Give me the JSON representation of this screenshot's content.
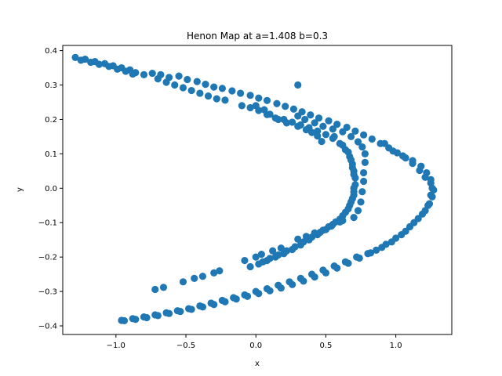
{
  "chart_data": {
    "type": "scatter",
    "title": "Henon Map at a=1.408 b=0.3",
    "xlabel": "x",
    "ylabel": "y",
    "xlim": [
      -1.38,
      1.4
    ],
    "ylim": [
      -0.425,
      0.415
    ],
    "xticks": [
      -1.0,
      -0.5,
      0.0,
      0.5,
      1.0
    ],
    "xtick_labels": [
      "−1.0",
      "−0.5",
      "0.0",
      "0.5",
      "1.0"
    ],
    "yticks": [
      -0.4,
      -0.3,
      -0.2,
      -0.1,
      0.0,
      0.1,
      0.2,
      0.3,
      0.4
    ],
    "ytick_labels": [
      "−0.4",
      "−0.3",
      "−0.2",
      "−0.1",
      "0.0",
      "0.1",
      "0.2",
      "0.3",
      "0.4"
    ],
    "grid": false,
    "marker_color": "#1f77b4",
    "series": [
      {
        "points": [
          [
            0.3,
            0.3
          ],
          [
            -1.29,
            0.38
          ],
          [
            -1.22,
            0.375
          ],
          [
            -1.15,
            0.368
          ],
          [
            -1.08,
            0.362
          ],
          [
            -1.02,
            0.356
          ],
          [
            -0.96,
            0.35
          ],
          [
            -0.9,
            0.344
          ],
          [
            -0.86,
            0.336
          ],
          [
            -0.8,
            0.33
          ],
          [
            -0.74,
            0.334
          ],
          [
            -0.68,
            0.33
          ],
          [
            -0.62,
            0.322
          ],
          [
            -0.55,
            0.326
          ],
          [
            -0.49,
            0.316
          ],
          [
            -0.42,
            0.31
          ],
          [
            -0.36,
            0.302
          ],
          [
            -0.3,
            0.294
          ],
          [
            -0.24,
            0.29
          ],
          [
            -0.17,
            0.283
          ],
          [
            -0.11,
            0.276
          ],
          [
            -0.04,
            0.27
          ],
          [
            0.02,
            0.262
          ],
          [
            0.08,
            0.255
          ],
          [
            0.15,
            0.246
          ],
          [
            0.21,
            0.238
          ],
          [
            0.27,
            0.23
          ],
          [
            0.33,
            0.222
          ],
          [
            0.39,
            0.213
          ],
          [
            0.45,
            0.204
          ],
          [
            0.52,
            0.196
          ],
          [
            0.58,
            0.186
          ],
          [
            0.65,
            0.177
          ],
          [
            0.71,
            0.166
          ],
          [
            0.77,
            0.155
          ],
          [
            0.83,
            0.143
          ],
          [
            0.89,
            0.13
          ],
          [
            0.95,
            0.117
          ],
          [
            1.01,
            0.103
          ],
          [
            1.07,
            0.088
          ],
          [
            1.12,
            0.072
          ],
          [
            1.17,
            0.052
          ],
          [
            1.21,
            0.032
          ],
          [
            1.25,
            0.015
          ],
          [
            1.27,
            -0.005
          ],
          [
            1.26,
            -0.025
          ],
          [
            1.24,
            -0.045
          ],
          [
            1.21,
            -0.065
          ],
          [
            1.16,
            -0.088
          ],
          [
            1.1,
            -0.112
          ],
          [
            1.04,
            -0.135
          ],
          [
            0.97,
            -0.156
          ],
          [
            0.9,
            -0.172
          ],
          [
            0.82,
            -0.188
          ],
          [
            0.74,
            -0.203
          ],
          [
            0.66,
            -0.218
          ],
          [
            0.58,
            -0.232
          ],
          [
            0.5,
            -0.246
          ],
          [
            0.42,
            -0.258
          ],
          [
            0.34,
            -0.27
          ],
          [
            0.26,
            -0.28
          ],
          [
            0.18,
            -0.29
          ],
          [
            0.1,
            -0.298
          ],
          [
            0.02,
            -0.306
          ],
          [
            -0.06,
            -0.314
          ],
          [
            -0.14,
            -0.322
          ],
          [
            -0.22,
            -0.33
          ],
          [
            -0.3,
            -0.338
          ],
          [
            -0.38,
            -0.345
          ],
          [
            -0.46,
            -0.352
          ],
          [
            -0.54,
            -0.358
          ],
          [
            -0.62,
            -0.364
          ],
          [
            -0.7,
            -0.37
          ],
          [
            -0.78,
            -0.376
          ],
          [
            -0.86,
            -0.381
          ],
          [
            -0.94,
            -0.385
          ],
          [
            -1.25,
            0.372
          ],
          [
            -1.18,
            0.366
          ],
          [
            -1.12,
            0.36
          ],
          [
            -1.05,
            0.354
          ],
          [
            -0.99,
            0.346
          ],
          [
            -0.93,
            0.34
          ],
          [
            -0.88,
            0.332
          ],
          [
            -0.7,
            0.318
          ],
          [
            -0.64,
            0.308
          ],
          [
            -0.58,
            0.3
          ],
          [
            -0.52,
            0.292
          ],
          [
            -0.46,
            0.284
          ],
          [
            -0.4,
            0.276
          ],
          [
            -0.34,
            0.268
          ],
          [
            -0.28,
            0.26
          ],
          [
            -0.22,
            0.256
          ],
          [
            -0.1,
            0.24
          ],
          [
            -0.04,
            0.234
          ],
          [
            0.02,
            0.226
          ],
          [
            0.08,
            0.214
          ],
          [
            0.14,
            0.204
          ],
          [
            0.2,
            0.2
          ],
          [
            0.26,
            0.192
          ],
          [
            0.32,
            0.184
          ],
          [
            0.38,
            0.176
          ],
          [
            0.44,
            0.166
          ],
          [
            0.5,
            0.156
          ],
          [
            0.55,
            0.145
          ],
          [
            0.6,
            0.13
          ],
          [
            0.64,
            0.112
          ],
          [
            0.67,
            0.092
          ],
          [
            0.69,
            0.07
          ],
          [
            0.7,
            0.05
          ],
          [
            0.71,
            0.03
          ],
          [
            0.71,
            0.01
          ],
          [
            0.7,
            -0.01
          ],
          [
            0.69,
            -0.03
          ],
          [
            0.67,
            -0.05
          ],
          [
            0.64,
            -0.07
          ],
          [
            0.6,
            -0.09
          ],
          [
            0.55,
            -0.105
          ],
          [
            0.5,
            -0.12
          ],
          [
            0.44,
            -0.135
          ],
          [
            0.38,
            -0.15
          ],
          [
            0.32,
            -0.165
          ],
          [
            0.26,
            -0.178
          ],
          [
            0.2,
            -0.19
          ],
          [
            0.14,
            -0.2
          ],
          [
            0.08,
            -0.21
          ],
          [
            0.02,
            -0.22
          ],
          [
            -0.04,
            -0.228
          ],
          [
            0.3,
            0.21
          ],
          [
            0.35,
            0.2
          ],
          [
            0.42,
            0.19
          ],
          [
            0.48,
            0.18
          ],
          [
            0.55,
            0.172
          ],
          [
            0.62,
            0.164
          ],
          [
            0.68,
            0.15
          ],
          [
            0.73,
            0.135
          ],
          [
            0.76,
            0.12
          ],
          [
            0.78,
            0.1
          ],
          [
            0.78,
            0.075
          ],
          [
            0.77,
            0.045
          ],
          [
            0.77,
            0.02
          ],
          [
            0.76,
            -0.01
          ],
          [
            0.75,
            -0.04
          ],
          [
            0.73,
            -0.065
          ],
          [
            0.7,
            -0.085
          ],
          [
            0.92,
            0.13
          ],
          [
            0.98,
            0.108
          ],
          [
            1.05,
            0.094
          ],
          [
            1.12,
            0.08
          ],
          [
            1.18,
            0.064
          ],
          [
            1.22,
            0.045
          ],
          [
            1.25,
            0.025
          ],
          [
            1.26,
            0.0
          ],
          [
            1.25,
            -0.02
          ],
          [
            1.23,
            -0.05
          ],
          [
            1.19,
            -0.075
          ],
          [
            1.13,
            -0.1
          ],
          [
            1.07,
            -0.125
          ],
          [
            1.0,
            -0.145
          ],
          [
            0.93,
            -0.163
          ],
          [
            0.86,
            -0.18
          ],
          [
            0.8,
            -0.19
          ],
          [
            0.72,
            -0.2
          ],
          [
            0.64,
            -0.214
          ],
          [
            0.56,
            -0.226
          ],
          [
            0.48,
            -0.238
          ],
          [
            0.4,
            -0.25
          ],
          [
            0.32,
            -0.262
          ],
          [
            0.24,
            -0.272
          ],
          [
            0.16,
            -0.282
          ],
          [
            0.08,
            -0.292
          ],
          [
            0.0,
            -0.3
          ],
          [
            -0.08,
            -0.31
          ],
          [
            -0.16,
            -0.318
          ],
          [
            -0.24,
            -0.326
          ],
          [
            -0.32,
            -0.334
          ],
          [
            -0.4,
            -0.342
          ],
          [
            -0.48,
            -0.35
          ],
          [
            -0.56,
            -0.356
          ],
          [
            -0.64,
            -0.362
          ],
          [
            -0.72,
            -0.368
          ],
          [
            -0.8,
            -0.374
          ],
          [
            -0.88,
            -0.379
          ],
          [
            -0.96,
            -0.384
          ],
          [
            -0.72,
            -0.294
          ],
          [
            -0.66,
            -0.288
          ],
          [
            -0.52,
            -0.272
          ],
          [
            -0.44,
            -0.262
          ],
          [
            -0.38,
            -0.256
          ],
          [
            -0.3,
            -0.246
          ],
          [
            -0.26,
            -0.24
          ],
          [
            -0.08,
            -0.21
          ],
          [
            0.0,
            -0.2
          ],
          [
            0.04,
            -0.192
          ],
          [
            0.12,
            -0.182
          ],
          [
            0.18,
            -0.174
          ],
          [
            0.3,
            -0.148
          ],
          [
            0.36,
            -0.14
          ],
          [
            0.42,
            -0.13
          ],
          [
            0.48,
            -0.122
          ],
          [
            0.54,
            -0.11
          ],
          [
            0.6,
            -0.098
          ],
          [
            0.62,
            -0.094
          ],
          [
            0.0,
            0.24
          ],
          [
            0.06,
            0.228
          ],
          [
            0.1,
            0.215
          ],
          [
            0.16,
            0.2
          ],
          [
            0.22,
            0.19
          ],
          [
            0.3,
            0.18
          ],
          [
            0.36,
            0.17
          ],
          [
            0.4,
            0.162
          ],
          [
            0.44,
            0.152
          ],
          [
            0.47,
            0.136
          ],
          [
            0.56,
            0.15
          ],
          [
            0.62,
            0.125
          ],
          [
            0.66,
            0.105
          ],
          [
            0.68,
            0.082
          ],
          [
            0.69,
            0.06
          ],
          [
            0.7,
            0.04
          ],
          [
            0.7,
            0.0
          ],
          [
            0.7,
            -0.02
          ],
          [
            0.68,
            -0.04
          ],
          [
            0.66,
            -0.06
          ],
          [
            0.62,
            -0.08
          ],
          [
            0.57,
            -0.098
          ],
          [
            0.52,
            -0.112
          ],
          [
            0.46,
            -0.128
          ],
          [
            0.4,
            -0.142
          ],
          [
            0.34,
            -0.156
          ],
          [
            0.28,
            -0.17
          ],
          [
            0.22,
            -0.182
          ],
          [
            0.16,
            -0.194
          ],
          [
            0.1,
            -0.204
          ],
          [
            0.05,
            -0.214
          ]
        ]
      }
    ]
  }
}
